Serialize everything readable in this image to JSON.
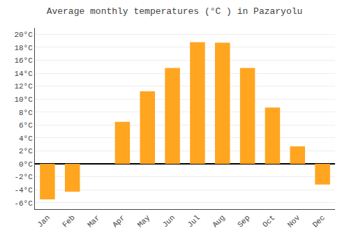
{
  "chart_data": {
    "type": "bar",
    "title": "Average monthly temperatures (°C ) in Pazaryolu",
    "categories": [
      "Jan",
      "Feb",
      "Mar",
      "Apr",
      "May",
      "Jun",
      "Jul",
      "Aug",
      "Sep",
      "Oct",
      "Nov",
      "Dec"
    ],
    "values": [
      -5.5,
      -4.3,
      0.0,
      6.5,
      11.2,
      14.8,
      18.8,
      18.7,
      14.8,
      8.7,
      2.7,
      -3.2
    ],
    "color": "#FFA520",
    "ylim": [
      -7,
      21
    ],
    "yticks": [
      {
        "value": -6,
        "label": "-6°C"
      },
      {
        "value": -4,
        "label": "-4°C"
      },
      {
        "value": -2,
        "label": "-2°C"
      },
      {
        "value": 0,
        "label": "0°C"
      },
      {
        "value": 2,
        "label": "2°C"
      },
      {
        "value": 4,
        "label": "4°C"
      },
      {
        "value": 6,
        "label": "6°C"
      },
      {
        "value": 8,
        "label": "8°C"
      },
      {
        "value": 10,
        "label": "10°C"
      },
      {
        "value": 12,
        "label": "12°C"
      },
      {
        "value": 14,
        "label": "14°C"
      },
      {
        "value": 16,
        "label": "16°C"
      },
      {
        "value": 18,
        "label": "18°C"
      },
      {
        "value": 20,
        "label": "20°C"
      }
    ],
    "grid": true
  }
}
